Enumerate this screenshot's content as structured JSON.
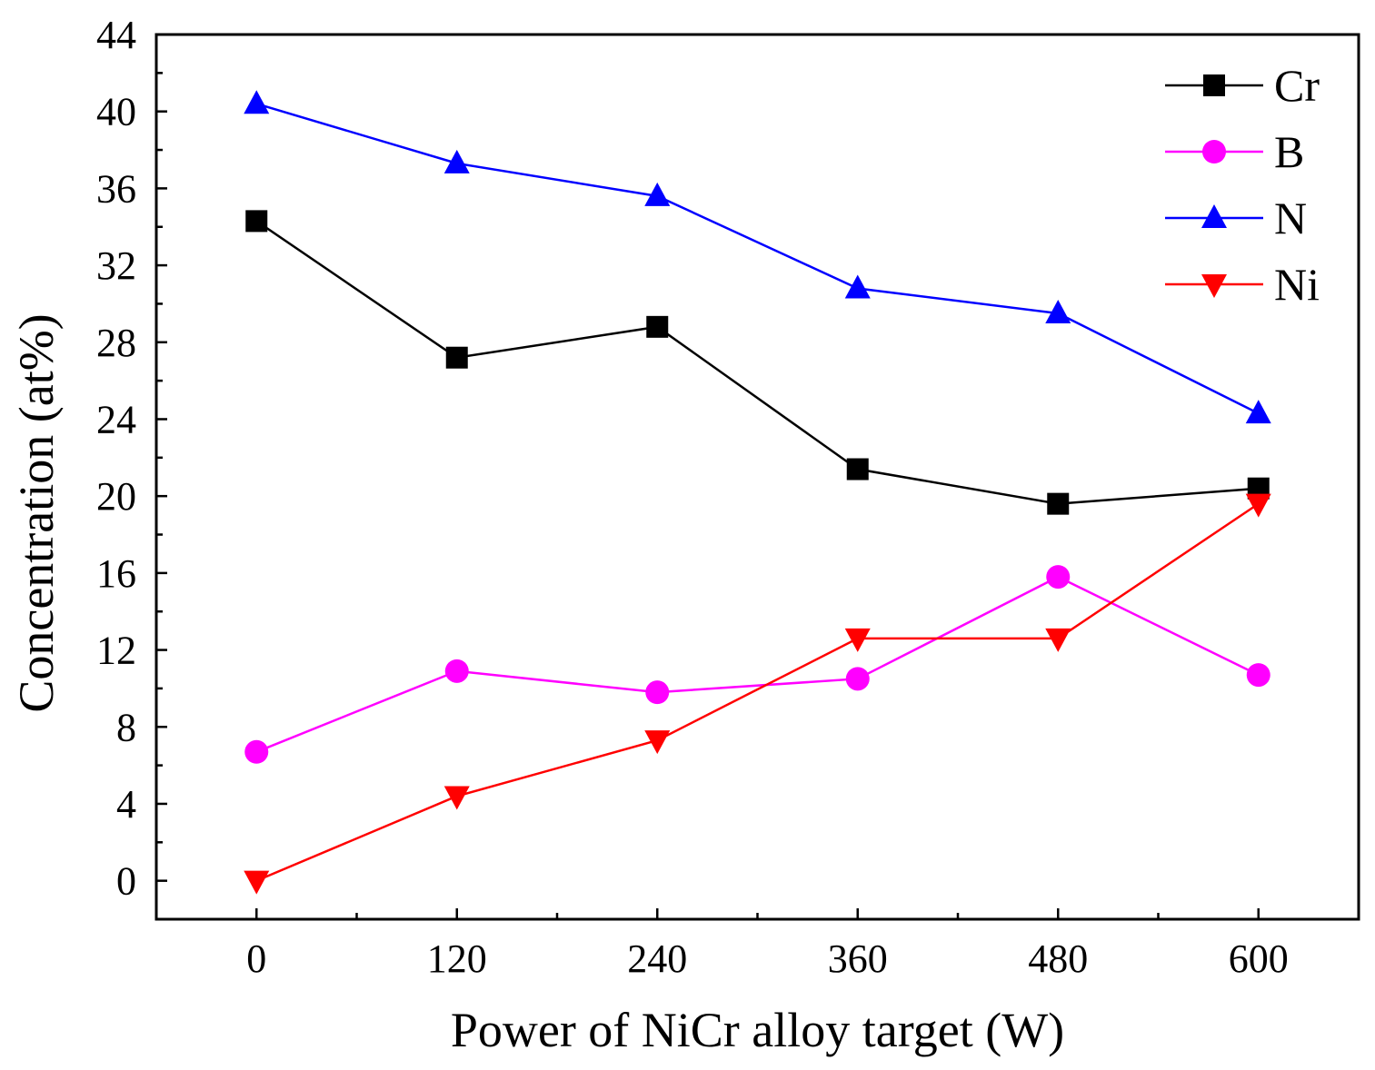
{
  "chart_data": {
    "type": "line",
    "title": "",
    "xlabel": "Power of NiCr alloy target (W)",
    "ylabel": "Concentration (at%)",
    "x": [
      0,
      120,
      240,
      360,
      480,
      600
    ],
    "x_ticks": [
      "0",
      "120",
      "240",
      "360",
      "480",
      "600"
    ],
    "y_ticks": [
      "0",
      "4",
      "8",
      "12",
      "16",
      "20",
      "24",
      "28",
      "32",
      "36",
      "40",
      "44"
    ],
    "xlim": [
      -60,
      660
    ],
    "ylim": [
      -2,
      44
    ],
    "grid": false,
    "legend_position": "top-right",
    "series": [
      {
        "name": "Cr",
        "marker": "square",
        "color": "#000000",
        "values": [
          34.3,
          27.2,
          28.8,
          21.4,
          19.6,
          20.4
        ]
      },
      {
        "name": "B",
        "marker": "circle",
        "color": "#ff00ff",
        "values": [
          6.7,
          10.9,
          9.8,
          10.5,
          15.8,
          10.7
        ]
      },
      {
        "name": "N",
        "marker": "triangle-up",
        "color": "#0000ff",
        "values": [
          40.4,
          37.3,
          35.6,
          30.8,
          29.5,
          24.3
        ]
      },
      {
        "name": "Ni",
        "marker": "triangle-down",
        "color": "#ff0000",
        "values": [
          0.0,
          4.4,
          7.3,
          12.6,
          12.6,
          19.6
        ]
      }
    ]
  }
}
